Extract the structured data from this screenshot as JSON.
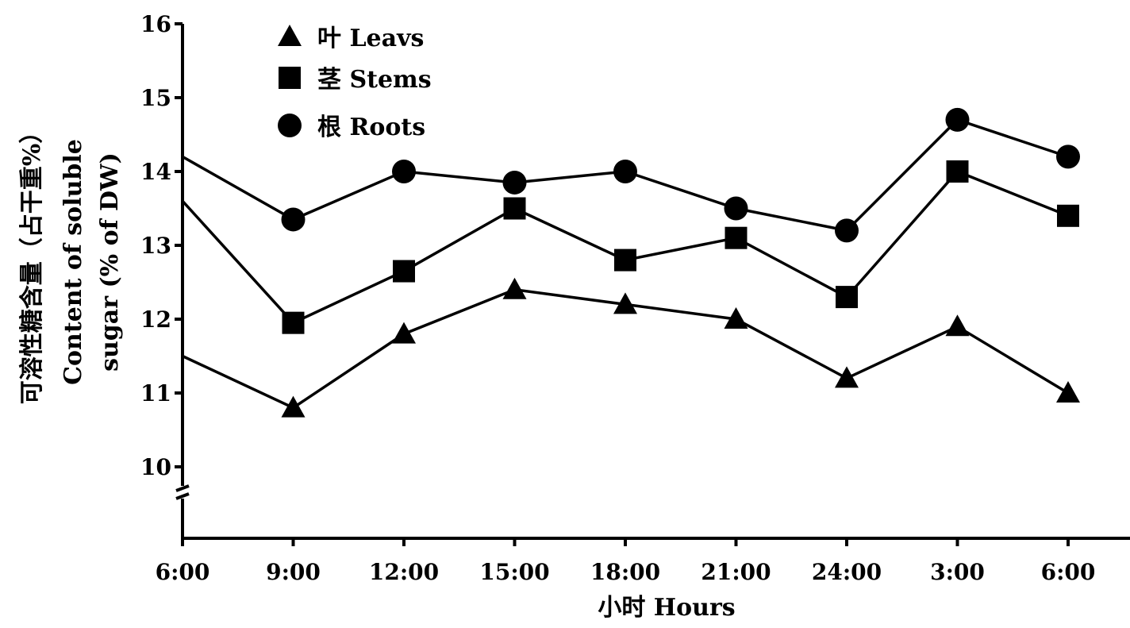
{
  "chart_data": {
    "type": "line",
    "title": "",
    "xlabel": "小时 Hours",
    "ylabel_lines": [
      "可溶性糖含量（占干重%）",
      "Content of soluble",
      "sugar (% of DW)"
    ],
    "categories": [
      "6:00",
      "9:00",
      "12:00",
      "15:00",
      "18:00",
      "21:00",
      "24:00",
      "3:00",
      "6:00"
    ],
    "ylim": [
      9.5,
      16
    ],
    "yticks": [
      10,
      11,
      12,
      13,
      14,
      15,
      16
    ],
    "axis_break": true,
    "grid": false,
    "legend_position": "top-left",
    "series": [
      {
        "name": "叶 Leavs",
        "marker": "triangle",
        "values": [
          11.5,
          10.8,
          11.8,
          12.4,
          12.2,
          12.0,
          11.2,
          11.9,
          11.0
        ]
      },
      {
        "name": "茎 Stems",
        "marker": "square",
        "values": [
          13.6,
          11.95,
          12.65,
          13.5,
          12.8,
          13.1,
          12.3,
          14.0,
          13.4
        ]
      },
      {
        "name": "根 Roots",
        "marker": "circle",
        "values": [
          14.2,
          13.35,
          14.0,
          13.85,
          14.0,
          13.5,
          13.2,
          14.7,
          14.2
        ]
      }
    ],
    "line_color": "#000000"
  }
}
